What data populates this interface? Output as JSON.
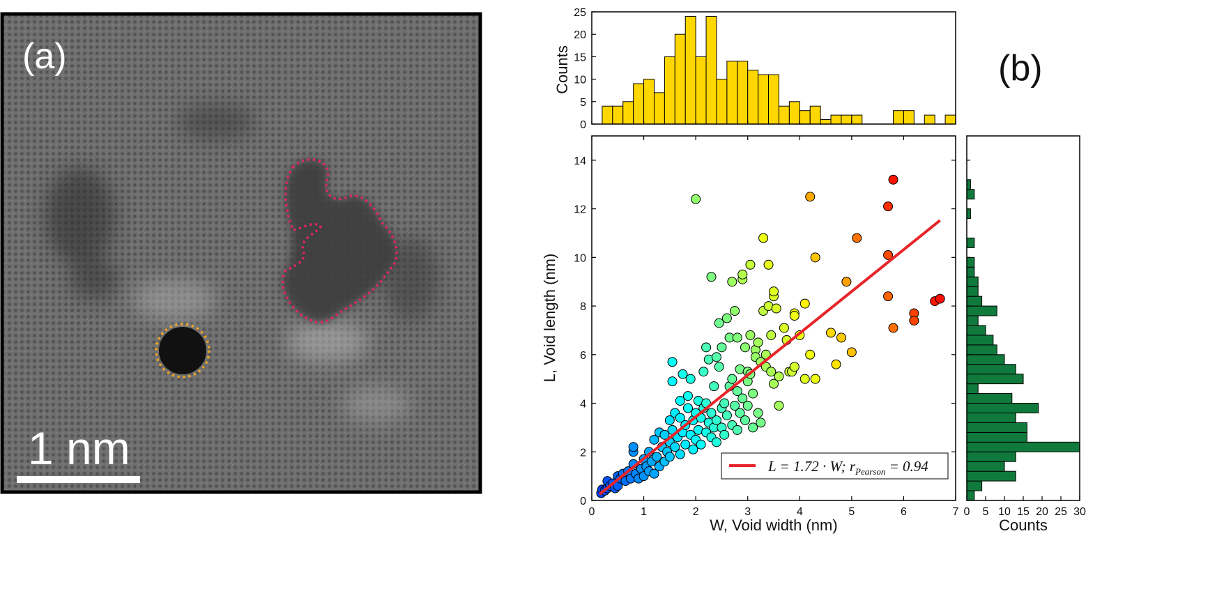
{
  "panel_a": {
    "label": "(a)",
    "scale_bar_label": "1 nm",
    "colors": {
      "void_outline_large": "#e8245f",
      "void_outline_round": "#f5a623",
      "frame": "#000000"
    }
  },
  "panel_b": {
    "label": "(b)"
  },
  "chart_data": {
    "type": "scatter",
    "xlabel": "W, Void width (nm)",
    "ylabel": "L, Void length (nm)",
    "xlim": [
      0,
      7
    ],
    "ylim": [
      0,
      15
    ],
    "xticks": [
      "0",
      "1",
      "2",
      "3",
      "4",
      "5",
      "6",
      "7"
    ],
    "yticks": [
      "0",
      "2",
      "4",
      "6",
      "8",
      "10",
      "12",
      "14"
    ],
    "colormap": "jet (by point length)",
    "fit_line": {
      "slope": 1.72,
      "x_range": [
        0.15,
        6.7
      ],
      "color": "#e8252a",
      "legend_text": "L = 1.72 · W; r",
      "legend_subscript": "Pearson",
      "legend_tail": " = 0.94",
      "legend_position": "lower right"
    },
    "points": [
      [
        0.18,
        0.3
      ],
      [
        0.2,
        0.45
      ],
      [
        0.25,
        0.4
      ],
      [
        0.3,
        0.8
      ],
      [
        0.3,
        0.5
      ],
      [
        0.35,
        0.6
      ],
      [
        0.4,
        0.7
      ],
      [
        0.45,
        0.5
      ],
      [
        0.5,
        1.0
      ],
      [
        0.5,
        0.6
      ],
      [
        0.55,
        0.9
      ],
      [
        0.6,
        1.1
      ],
      [
        0.65,
        0.8
      ],
      [
        0.7,
        1.2
      ],
      [
        0.75,
        0.9
      ],
      [
        0.8,
        1.5
      ],
      [
        0.8,
        2.0
      ],
      [
        0.8,
        2.2
      ],
      [
        0.85,
        1.1
      ],
      [
        0.9,
        0.9
      ],
      [
        0.95,
        1.3
      ],
      [
        1.0,
        1.7
      ],
      [
        1.0,
        1.0
      ],
      [
        1.05,
        1.4
      ],
      [
        1.1,
        2.0
      ],
      [
        1.1,
        1.2
      ],
      [
        1.15,
        1.6
      ],
      [
        1.2,
        2.5
      ],
      [
        1.2,
        1.1
      ],
      [
        1.25,
        1.8
      ],
      [
        1.3,
        2.8
      ],
      [
        1.3,
        1.4
      ],
      [
        1.35,
        2.2
      ],
      [
        1.4,
        1.6
      ],
      [
        1.4,
        2.7
      ],
      [
        1.45,
        2.0
      ],
      [
        1.5,
        3.3
      ],
      [
        1.5,
        1.8
      ],
      [
        1.5,
        2.4
      ],
      [
        1.55,
        2.9
      ],
      [
        1.55,
        5.7
      ],
      [
        1.55,
        4.9
      ],
      [
        1.6,
        2.2
      ],
      [
        1.6,
        3.6
      ],
      [
        1.65,
        2.6
      ],
      [
        1.7,
        3.4
      ],
      [
        1.7,
        1.9
      ],
      [
        1.7,
        4.1
      ],
      [
        1.75,
        2.8
      ],
      [
        1.75,
        5.2
      ],
      [
        1.8,
        3.1
      ],
      [
        1.8,
        2.3
      ],
      [
        1.85,
        3.8
      ],
      [
        1.85,
        4.3
      ],
      [
        1.9,
        2.7
      ],
      [
        1.9,
        5.0
      ],
      [
        1.95,
        3.3
      ],
      [
        1.95,
        2.1
      ],
      [
        2.0,
        2.5
      ],
      [
        2.0,
        12.4
      ],
      [
        2.0,
        3.6
      ],
      [
        2.05,
        2.9
      ],
      [
        2.05,
        4.1
      ],
      [
        2.1,
        3.4
      ],
      [
        2.1,
        2.3
      ],
      [
        2.15,
        3.8
      ],
      [
        2.15,
        5.3
      ],
      [
        2.2,
        4.0
      ],
      [
        2.2,
        2.8
      ],
      [
        2.2,
        6.3
      ],
      [
        2.25,
        3.2
      ],
      [
        2.25,
        5.8
      ],
      [
        2.3,
        3.6
      ],
      [
        2.3,
        9.2
      ],
      [
        2.3,
        2.6
      ],
      [
        2.35,
        4.7
      ],
      [
        2.35,
        3.0
      ],
      [
        2.4,
        5.9
      ],
      [
        2.4,
        3.3
      ],
      [
        2.4,
        2.4
      ],
      [
        2.45,
        7.3
      ],
      [
        2.45,
        5.5
      ],
      [
        2.5,
        3.8
      ],
      [
        2.5,
        6.3
      ],
      [
        2.5,
        3.0
      ],
      [
        2.55,
        4.0
      ],
      [
        2.55,
        2.7
      ],
      [
        2.6,
        3.5
      ],
      [
        2.6,
        7.5
      ],
      [
        2.65,
        4.7
      ],
      [
        2.65,
        6.7
      ],
      [
        2.7,
        5.0
      ],
      [
        2.7,
        3.1
      ],
      [
        2.7,
        9.0
      ],
      [
        2.75,
        3.9
      ],
      [
        2.75,
        7.8
      ],
      [
        2.8,
        4.5
      ],
      [
        2.8,
        2.9
      ],
      [
        2.8,
        6.7
      ],
      [
        2.85,
        5.4
      ],
      [
        2.85,
        3.6
      ],
      [
        2.9,
        9.1
      ],
      [
        2.9,
        4.2
      ],
      [
        2.9,
        9.3
      ],
      [
        2.95,
        3.3
      ],
      [
        2.95,
        6.3
      ],
      [
        3.0,
        5.3
      ],
      [
        3.0,
        3.9
      ],
      [
        3.0,
        4.9
      ],
      [
        3.05,
        6.8
      ],
      [
        3.05,
        9.7
      ],
      [
        3.05,
        5.2
      ],
      [
        3.1,
        3.0
      ],
      [
        3.1,
        4.4
      ],
      [
        3.15,
        6.2
      ],
      [
        3.15,
        5.9
      ],
      [
        3.2,
        6.5
      ],
      [
        3.2,
        3.6
      ],
      [
        3.25,
        5.7
      ],
      [
        3.25,
        3.2
      ],
      [
        3.3,
        10.8
      ],
      [
        3.3,
        7.8
      ],
      [
        3.35,
        6.0
      ],
      [
        3.35,
        5.5
      ],
      [
        3.4,
        9.7
      ],
      [
        3.4,
        8.0
      ],
      [
        3.45,
        6.8
      ],
      [
        3.45,
        5.3
      ],
      [
        3.5,
        8.4
      ],
      [
        3.5,
        8.6
      ],
      [
        3.5,
        4.8
      ],
      [
        3.55,
        7.9
      ],
      [
        3.6,
        5.1
      ],
      [
        3.6,
        3.9
      ],
      [
        3.7,
        7.1
      ],
      [
        3.75,
        6.6
      ],
      [
        3.8,
        5.3
      ],
      [
        3.85,
        5.3
      ],
      [
        3.9,
        7.7
      ],
      [
        3.9,
        7.6
      ],
      [
        3.9,
        5.5
      ],
      [
        4.0,
        6.8
      ],
      [
        4.1,
        8.1
      ],
      [
        4.1,
        5.0
      ],
      [
        4.2,
        12.5
      ],
      [
        4.2,
        6.0
      ],
      [
        4.3,
        10.0
      ],
      [
        4.3,
        5.0
      ],
      [
        4.6,
        6.9
      ],
      [
        4.7,
        5.6
      ],
      [
        4.8,
        6.7
      ],
      [
        4.9,
        9.0
      ],
      [
        5.0,
        6.1
      ],
      [
        5.1,
        10.8
      ],
      [
        5.7,
        12.1
      ],
      [
        5.7,
        10.1
      ],
      [
        5.7,
        8.4
      ],
      [
        5.8,
        13.2
      ],
      [
        5.8,
        7.1
      ],
      [
        6.2,
        7.7
      ],
      [
        6.2,
        7.4
      ],
      [
        6.6,
        8.2
      ],
      [
        6.7,
        8.3
      ]
    ],
    "top_histogram": {
      "ylabel": "Counts",
      "ylim": [
        0,
        25
      ],
      "yticks": [
        "0",
        "5",
        "10",
        "15",
        "20",
        "25"
      ],
      "bin_width": 0.2,
      "x_start": 0.2,
      "counts": [
        4,
        4,
        5,
        9,
        10,
        7,
        15,
        20,
        24,
        15,
        24,
        10,
        14,
        14,
        12,
        11,
        11,
        4,
        5,
        3,
        4,
        1,
        2,
        2,
        2,
        0,
        0,
        0,
        3,
        3,
        0,
        2,
        0,
        2
      ],
      "color": "#ffd700"
    },
    "right_histogram": {
      "xlabel": "Counts",
      "xlim": [
        0,
        30
      ],
      "xticks": [
        "0",
        "5",
        "10",
        "15",
        "20",
        "25",
        "30"
      ],
      "bin_width": 0.4,
      "y_start": 0.0,
      "counts": [
        2,
        4,
        13,
        10,
        13,
        30,
        16,
        16,
        13,
        19,
        12,
        3,
        15,
        13,
        10,
        8,
        7,
        5,
        3,
        8,
        4,
        3,
        3,
        2,
        2,
        0,
        2,
        0,
        0,
        1,
        0,
        2,
        1,
        0,
        0,
        0
      ],
      "color": "#0f7a3b"
    }
  }
}
